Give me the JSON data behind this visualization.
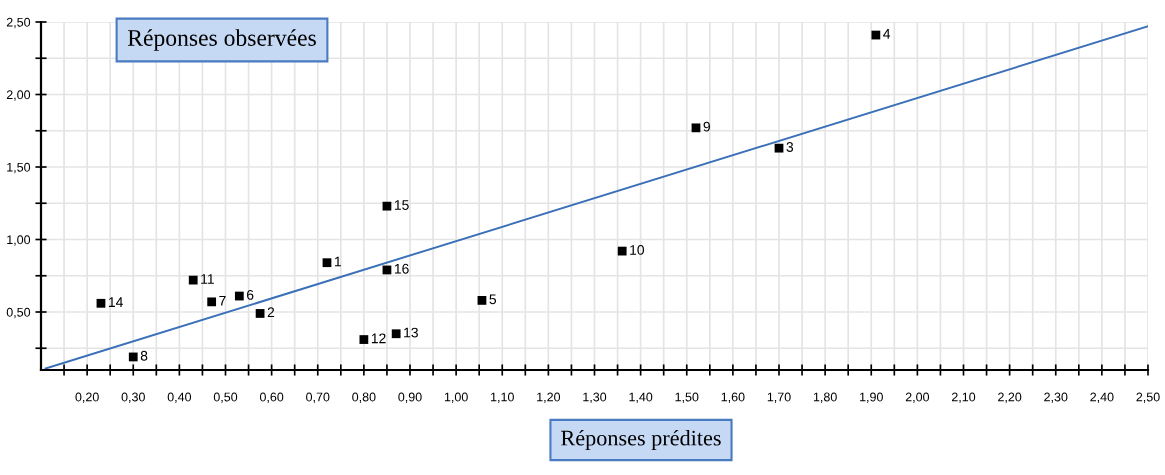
{
  "chart_data": {
    "type": "scatter",
    "xlabel": "Réponses prédites",
    "ylabel": "Réponses observées",
    "series": [
      {
        "color": "#000000",
        "marker": "square",
        "x": [
          0.72,
          0.575,
          1.7,
          1.91,
          1.056,
          0.53,
          0.47,
          0.3,
          1.52,
          1.36,
          0.43,
          0.8,
          0.87,
          0.23,
          0.85,
          0.85
        ],
        "values": [
          0.84,
          0.49,
          1.63,
          2.41,
          0.58,
          0.61,
          0.57,
          0.19,
          1.77,
          0.92,
          0.72,
          0.31,
          0.35,
          0.56,
          1.23,
          0.79
        ]
      },
      {
        "type": "line",
        "color": "#3a70b8",
        "line_style": "solid",
        "x": [
          0.11,
          2.5
        ],
        "values": [
          0.11,
          2.47
        ]
      }
    ],
    "annotations": [
      {
        "text": "1",
        "x": 0.72,
        "y": 0.84
      },
      {
        "text": "2",
        "x": 0.575,
        "y": 0.49
      },
      {
        "text": "3",
        "x": 1.7,
        "y": 1.63
      },
      {
        "text": "4",
        "x": 1.91,
        "y": 2.41
      },
      {
        "text": "5",
        "x": 1.056,
        "y": 0.58
      },
      {
        "text": "6",
        "x": 0.53,
        "y": 0.61
      },
      {
        "text": "7",
        "x": 0.47,
        "y": 0.57
      },
      {
        "text": "8",
        "x": 0.3,
        "y": 0.19
      },
      {
        "text": "9",
        "x": 1.52,
        "y": 1.77
      },
      {
        "text": "10",
        "x": 1.36,
        "y": 0.92
      },
      {
        "text": "11",
        "x": 0.43,
        "y": 0.72
      },
      {
        "text": "12",
        "x": 0.8,
        "y": 0.31
      },
      {
        "text": "13",
        "x": 0.87,
        "y": 0.35
      },
      {
        "text": "14",
        "x": 0.23,
        "y": 0.56
      },
      {
        "text": "15",
        "x": 0.85,
        "y": 1.23
      },
      {
        "text": "16",
        "x": 0.85,
        "y": 0.79
      }
    ],
    "xlim": [
      0.1,
      2.5
    ],
    "ylim": [
      0.1,
      2.5
    ],
    "xticks": [
      {
        "value": 0.15,
        "label": null
      },
      {
        "value": 0.2,
        "label": "0,20"
      },
      {
        "value": 0.25,
        "label": null
      },
      {
        "value": 0.3,
        "label": "0,30"
      },
      {
        "value": 0.35,
        "label": null
      },
      {
        "value": 0.4,
        "label": "0,40"
      },
      {
        "value": 0.45,
        "label": null
      },
      {
        "value": 0.5,
        "label": "0,50"
      },
      {
        "value": 0.55,
        "label": null
      },
      {
        "value": 0.6,
        "label": "0,60"
      },
      {
        "value": 0.65,
        "label": null
      },
      {
        "value": 0.7,
        "label": "0,70"
      },
      {
        "value": 0.75,
        "label": null
      },
      {
        "value": 0.8,
        "label": "0,80"
      },
      {
        "value": 0.85,
        "label": null
      },
      {
        "value": 0.9,
        "label": "0,90"
      },
      {
        "value": 0.95,
        "label": null
      },
      {
        "value": 1.0,
        "label": "1,00"
      },
      {
        "value": 1.05,
        "label": null
      },
      {
        "value": 1.1,
        "label": "1,10"
      },
      {
        "value": 1.15,
        "label": null
      },
      {
        "value": 1.2,
        "label": "1,20"
      },
      {
        "value": 1.25,
        "label": null
      },
      {
        "value": 1.3,
        "label": "1,30"
      },
      {
        "value": 1.35,
        "label": null
      },
      {
        "value": 1.4,
        "label": "1,40"
      },
      {
        "value": 1.45,
        "label": null
      },
      {
        "value": 1.5,
        "label": "1,50"
      },
      {
        "value": 1.55,
        "label": null
      },
      {
        "value": 1.6,
        "label": "1,60"
      },
      {
        "value": 1.65,
        "label": null
      },
      {
        "value": 1.7,
        "label": "1,70"
      },
      {
        "value": 1.75,
        "label": null
      },
      {
        "value": 1.8,
        "label": "1,80"
      },
      {
        "value": 1.85,
        "label": null
      },
      {
        "value": 1.9,
        "label": "1,90"
      },
      {
        "value": 1.95,
        "label": null
      },
      {
        "value": 2.0,
        "label": "2,00"
      },
      {
        "value": 2.05,
        "label": null
      },
      {
        "value": 2.1,
        "label": "2,10"
      },
      {
        "value": 2.15,
        "label": null
      },
      {
        "value": 2.2,
        "label": "2,20"
      },
      {
        "value": 2.25,
        "label": null
      },
      {
        "value": 2.3,
        "label": "2,30"
      },
      {
        "value": 2.35,
        "label": null
      },
      {
        "value": 2.4,
        "label": "2,40"
      },
      {
        "value": 2.45,
        "label": null
      },
      {
        "value": 2.5,
        "label": "2,50"
      }
    ],
    "yticks": [
      {
        "value": 0.25,
        "label": null
      },
      {
        "value": 0.5,
        "label": "0,50"
      },
      {
        "value": 0.75,
        "label": null
      },
      {
        "value": 1.0,
        "label": "1,00"
      },
      {
        "value": 1.25,
        "label": null
      },
      {
        "value": 1.5,
        "label": "1,50"
      },
      {
        "value": 1.75,
        "label": null
      },
      {
        "value": 2.0,
        "label": "2,00"
      },
      {
        "value": 2.25,
        "label": null
      },
      {
        "value": 2.5,
        "label": "2,50"
      }
    ],
    "grid": true,
    "legend": false
  }
}
